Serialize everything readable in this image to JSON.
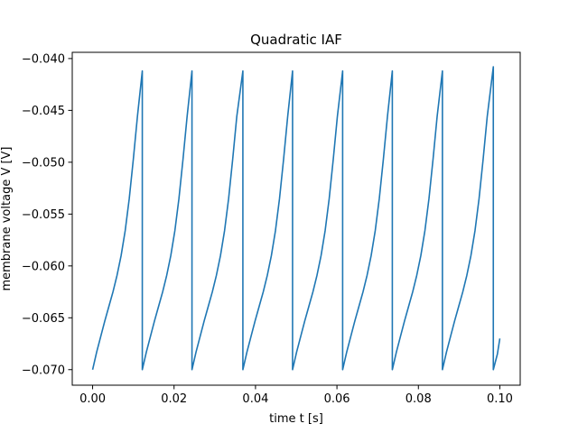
{
  "chart_data": {
    "type": "line",
    "title": "Quadratic IAF",
    "xlabel": "time t [s]",
    "ylabel": "membrane voltage V [V]",
    "xlim": [
      -0.005,
      0.105
    ],
    "ylim": [
      -0.0715,
      -0.0394
    ],
    "xticks": [
      0.0,
      0.02,
      0.04,
      0.06,
      0.08,
      0.1
    ],
    "xtick_labels": [
      "0.00",
      "0.02",
      "0.04",
      "0.06",
      "0.08",
      "0.10"
    ],
    "yticks": [
      -0.07,
      -0.065,
      -0.06,
      -0.055,
      -0.05,
      -0.045,
      -0.04
    ],
    "ytick_labels": [
      "−0.070",
      "−0.065",
      "−0.060",
      "−0.055",
      "−0.050",
      "−0.045",
      "−0.040"
    ],
    "grid": false,
    "series": [
      {
        "color": "#1f77b4",
        "x": [
          0.0,
          0.001,
          0.002,
          0.003,
          0.004,
          0.005,
          0.006,
          0.007,
          0.008,
          0.009,
          0.01,
          0.011,
          0.0122,
          0.0122,
          0.0132,
          0.0142,
          0.0152,
          0.0162,
          0.0172,
          0.0182,
          0.0192,
          0.0202,
          0.0212,
          0.0222,
          0.0232,
          0.0244,
          0.0244,
          0.0254,
          0.0264,
          0.0274,
          0.0284,
          0.0294,
          0.0304,
          0.0314,
          0.0324,
          0.0334,
          0.0344,
          0.0354,
          0.0369,
          0.0369,
          0.0379,
          0.0389,
          0.0399,
          0.0409,
          0.0419,
          0.0429,
          0.0439,
          0.0449,
          0.0459,
          0.0469,
          0.0479,
          0.0491,
          0.0491,
          0.0501,
          0.0511,
          0.0521,
          0.0531,
          0.0541,
          0.0551,
          0.0561,
          0.0571,
          0.0581,
          0.0591,
          0.0601,
          0.0614,
          0.0614,
          0.0624,
          0.0634,
          0.0644,
          0.0654,
          0.0664,
          0.0674,
          0.0684,
          0.0694,
          0.0704,
          0.0714,
          0.0724,
          0.0736,
          0.0736,
          0.0746,
          0.0756,
          0.0766,
          0.0776,
          0.0786,
          0.0796,
          0.0806,
          0.0816,
          0.0826,
          0.0836,
          0.0846,
          0.0859,
          0.0859,
          0.0869,
          0.0879,
          0.0889,
          0.0899,
          0.0909,
          0.0919,
          0.0929,
          0.0939,
          0.0949,
          0.0959,
          0.0969,
          0.0984,
          0.0984,
          0.0994,
          0.1
        ],
        "y": [
          -0.07,
          -0.0683,
          -0.0668,
          -0.0653,
          -0.0639,
          -0.0625,
          -0.0609,
          -0.059,
          -0.0566,
          -0.0535,
          -0.0497,
          -0.0456,
          -0.0412,
          -0.07,
          -0.0683,
          -0.0668,
          -0.0653,
          -0.0639,
          -0.0625,
          -0.0609,
          -0.059,
          -0.0566,
          -0.0535,
          -0.0497,
          -0.0456,
          -0.0412,
          -0.07,
          -0.0683,
          -0.0668,
          -0.0653,
          -0.0639,
          -0.0625,
          -0.0609,
          -0.059,
          -0.0566,
          -0.0535,
          -0.0497,
          -0.0456,
          -0.0412,
          -0.07,
          -0.0683,
          -0.0668,
          -0.0653,
          -0.0639,
          -0.0625,
          -0.0609,
          -0.059,
          -0.0566,
          -0.0535,
          -0.0497,
          -0.0456,
          -0.0412,
          -0.07,
          -0.0683,
          -0.0668,
          -0.0653,
          -0.0639,
          -0.0625,
          -0.0609,
          -0.059,
          -0.0566,
          -0.0535,
          -0.0497,
          -0.0456,
          -0.0412,
          -0.07,
          -0.0683,
          -0.0668,
          -0.0653,
          -0.0639,
          -0.0625,
          -0.0609,
          -0.059,
          -0.0566,
          -0.0535,
          -0.0497,
          -0.0456,
          -0.0412,
          -0.07,
          -0.0683,
          -0.0668,
          -0.0653,
          -0.0639,
          -0.0625,
          -0.0609,
          -0.059,
          -0.0566,
          -0.0535,
          -0.0497,
          -0.0456,
          -0.0412,
          -0.07,
          -0.0683,
          -0.0668,
          -0.0653,
          -0.0639,
          -0.0625,
          -0.0609,
          -0.059,
          -0.0566,
          -0.0535,
          -0.0497,
          -0.0456,
          -0.0408,
          -0.07,
          -0.0685,
          -0.067
        ]
      }
    ]
  }
}
